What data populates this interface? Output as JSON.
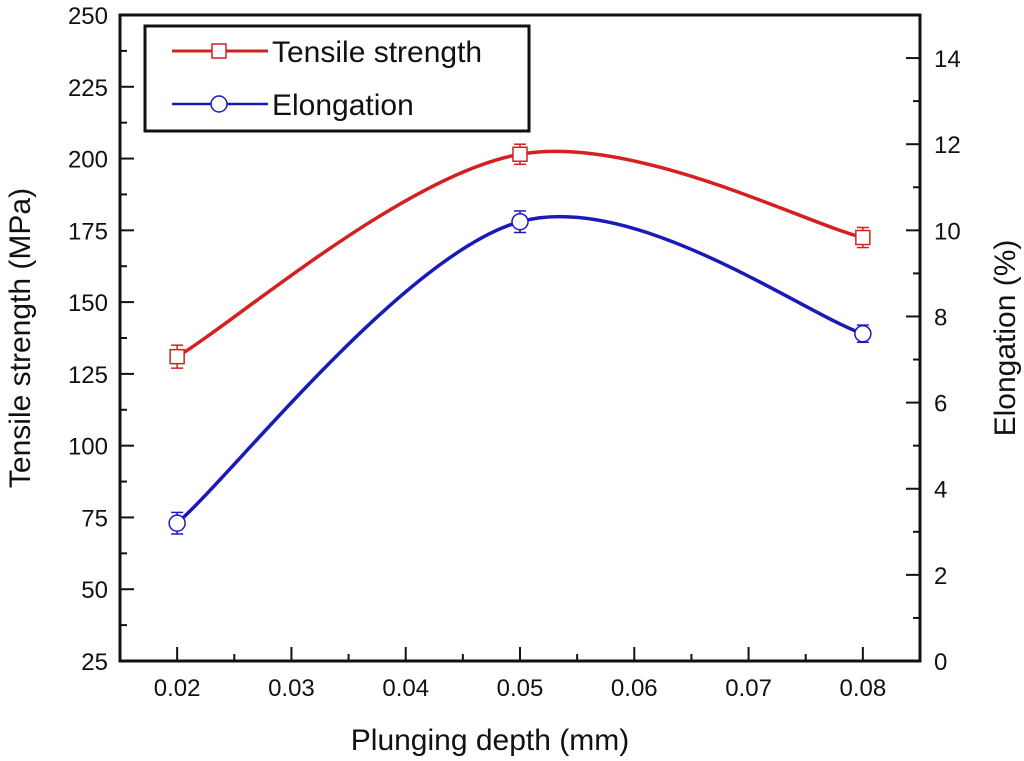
{
  "chart_data": {
    "type": "line",
    "title": "",
    "xlabel": "Plunging depth (mm)",
    "ylabel": "Tensile strength (MPa)",
    "y2label": "Elongation (%)",
    "x": [
      0.02,
      0.05,
      0.08
    ],
    "xlim": [
      0.015,
      0.085
    ],
    "ylim": [
      25,
      250
    ],
    "y2lim": [
      0,
      15
    ],
    "x_ticks": [
      "0.02",
      "0.03",
      "0.04",
      "0.05",
      "0.06",
      "0.07",
      "0.08"
    ],
    "x_tick_values": [
      0.02,
      0.03,
      0.04,
      0.05,
      0.06,
      0.07,
      0.08
    ],
    "y_ticks": [
      "25",
      "50",
      "75",
      "100",
      "125",
      "150",
      "175",
      "200",
      "225",
      "250"
    ],
    "y_tick_values": [
      25,
      50,
      75,
      100,
      125,
      150,
      175,
      200,
      225,
      250
    ],
    "y2_ticks": [
      "0",
      "2",
      "4",
      "6",
      "8",
      "10",
      "12",
      "14"
    ],
    "y2_tick_values": [
      0,
      2,
      4,
      6,
      8,
      10,
      12,
      14
    ],
    "grid": false,
    "legend_position": "top-left",
    "series": [
      {
        "name": "Tensile strength",
        "axis": "left",
        "color": "#d42020",
        "marker": "square",
        "values": [
          131,
          201.5,
          172.5
        ],
        "errors": [
          4,
          3.5,
          3.5
        ]
      },
      {
        "name": "Elongation",
        "axis": "right",
        "color": "#1a1ab8",
        "marker": "circle",
        "values": [
          3.2,
          10.2,
          7.6
        ],
        "errors": [
          0.25,
          0.25,
          0.2
        ]
      }
    ]
  }
}
